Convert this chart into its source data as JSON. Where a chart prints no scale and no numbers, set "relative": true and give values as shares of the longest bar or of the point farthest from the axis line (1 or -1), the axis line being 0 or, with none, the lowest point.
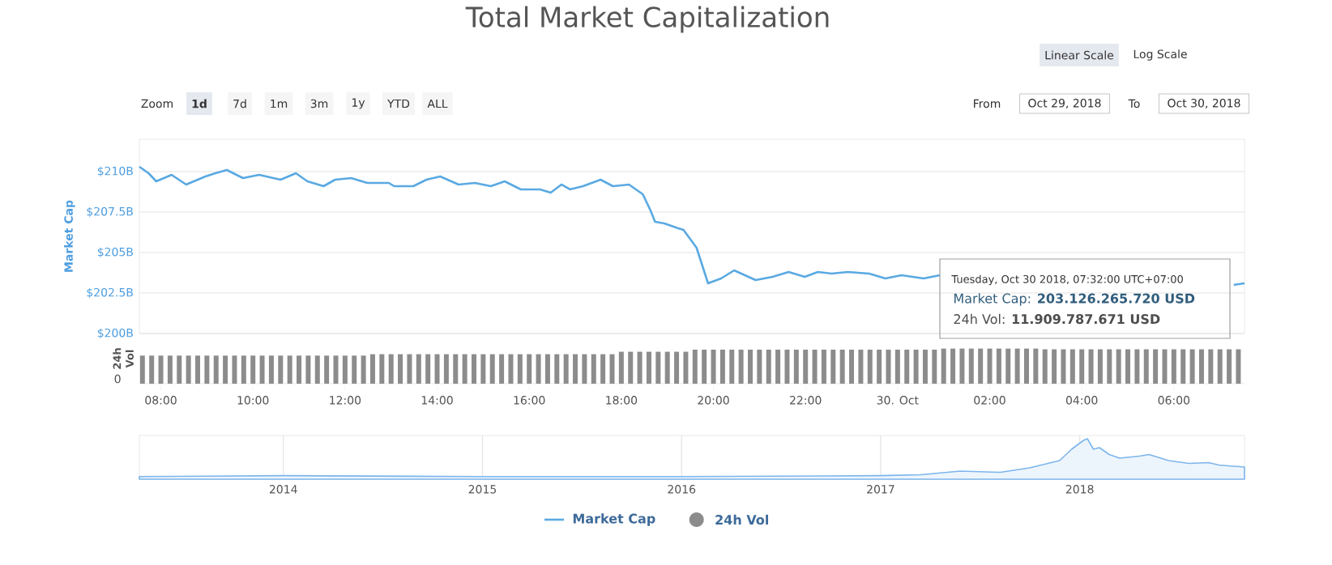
{
  "chart_data": [
    {
      "type": "line",
      "title": "Total Market Capitalization",
      "ylabel": "Market Cap",
      "x": [
        "2018-10-29T07:32",
        "2018-10-29T07:44",
        "2018-10-29T07:54",
        "2018-10-29T08:14",
        "2018-10-29T08:33",
        "2018-10-29T08:58",
        "2018-10-29T09:11",
        "2018-10-29T09:26",
        "2018-10-29T09:47",
        "2018-10-29T10:08",
        "2018-10-29T10:36",
        "2018-10-29T10:56",
        "2018-10-29T11:11",
        "2018-10-29T11:32",
        "2018-10-29T11:47",
        "2018-10-29T12:08",
        "2018-10-29T12:29",
        "2018-10-29T12:57",
        "2018-10-29T13:04",
        "2018-10-29T13:29",
        "2018-10-29T13:46",
        "2018-10-29T14:04",
        "2018-10-29T14:28",
        "2018-10-29T14:49",
        "2018-10-29T15:10",
        "2018-10-29T15:28",
        "2018-10-29T15:49",
        "2018-10-29T16:14",
        "2018-10-29T16:28",
        "2018-10-29T16:42",
        "2018-10-29T16:53",
        "2018-10-29T17:10",
        "2018-10-29T17:33",
        "2018-10-29T17:49",
        "2018-10-29T18:10",
        "2018-10-29T18:28",
        "2018-10-29T18:31",
        "2018-10-29T18:38",
        "2018-10-29T18:44",
        "2018-10-29T18:56",
        "2018-10-29T19:14",
        "2018-10-29T19:21",
        "2018-10-29T19:38",
        "2018-10-29T19:53",
        "2018-10-29T20:10",
        "2018-10-29T20:27",
        "2018-10-29T20:55",
        "2018-10-29T21:17",
        "2018-10-29T21:38",
        "2018-10-29T21:59",
        "2018-10-29T22:16",
        "2018-10-29T22:34",
        "2018-10-29T22:55",
        "2018-10-29T23:23",
        "2018-10-29T23:44",
        "2018-10-30T00:05",
        "2018-10-30T00:34",
        "2018-10-30T00:55",
        "2018-10-30T03:00",
        "2018-10-30T07:18",
        "2018-10-30T07:32"
      ],
      "series": [
        {
          "name": "Market Cap",
          "color": "#5aa9e2",
          "values": [
            210.3,
            209.9,
            209.4,
            209.8,
            209.2,
            209.7,
            209.9,
            210.1,
            209.6,
            209.8,
            209.5,
            209.9,
            209.4,
            209.1,
            209.5,
            209.6,
            209.3,
            209.3,
            209.1,
            209.1,
            209.5,
            209.7,
            209.2,
            209.3,
            209.1,
            209.4,
            208.9,
            208.9,
            208.7,
            209.2,
            208.9,
            209.1,
            209.5,
            209.1,
            209.2,
            208.6,
            208.3,
            207.6,
            206.9,
            206.8,
            206.5,
            206.4,
            205.3,
            203.1,
            203.4,
            203.9,
            203.3,
            203.5,
            203.8,
            203.5,
            203.8,
            203.7,
            203.8,
            203.7,
            203.4,
            203.6,
            203.4,
            203.6,
            null,
            203.0,
            203.1
          ]
        }
      ],
      "xlim": [
        "2018-10-29T07:32",
        "2018-10-30T07:32"
      ],
      "ylim": [
        200,
        212
      ],
      "yticks": [
        {
          "value": 200,
          "label": "$200B"
        },
        {
          "value": 202.5,
          "label": "$202.5B"
        },
        {
          "value": 205,
          "label": "$205B"
        },
        {
          "value": 207.5,
          "label": "$207.5B"
        },
        {
          "value": 210,
          "label": "$210B"
        }
      ],
      "grid": "y",
      "tick_labels": "y",
      "legend": "bottom",
      "annotations": [
        "Linear Scale",
        "Log Scale",
        "Zoom",
        "1d",
        "7d",
        "1m",
        "3m",
        "1y",
        "YTD",
        "ALL",
        "From",
        "Oct 29, 2018",
        "To",
        "Oct 30, 2018",
        "Tuesday, Oct 30 2018, 07:32:00 UTC+07:00",
        "Market Cap: **203.126.265.720 USD**",
        "24h Vol: **11.909.787.671 USD**"
      ]
    },
    {
      "type": "bar",
      "ylabel": "24h Vol",
      "relative": true,
      "x": [
        "2018-10-29T07:36",
        "2018-10-29T07:48",
        "2018-10-29T08:00",
        "2018-10-29T08:12",
        "2018-10-29T08:24",
        "2018-10-29T08:36",
        "2018-10-29T08:48",
        "2018-10-29T09:00",
        "2018-10-29T09:12",
        "2018-10-29T09:24",
        "2018-10-29T09:36",
        "2018-10-29T09:48",
        "2018-10-29T10:00",
        "2018-10-29T10:12",
        "2018-10-29T10:24",
        "2018-10-29T10:36",
        "2018-10-29T10:48",
        "2018-10-29T11:00",
        "2018-10-29T11:12",
        "2018-10-29T11:24",
        "2018-10-29T11:36",
        "2018-10-29T11:48",
        "2018-10-29T12:00",
        "2018-10-29T12:12",
        "2018-10-29T12:24",
        "2018-10-29T12:36",
        "2018-10-29T12:48",
        "2018-10-29T13:00",
        "2018-10-29T13:12",
        "2018-10-29T13:24",
        "2018-10-29T13:36",
        "2018-10-29T13:48",
        "2018-10-29T14:00",
        "2018-10-29T14:12",
        "2018-10-29T14:24",
        "2018-10-29T14:36",
        "2018-10-29T14:48",
        "2018-10-29T15:00",
        "2018-10-29T15:12",
        "2018-10-29T15:24",
        "2018-10-29T15:36",
        "2018-10-29T15:48",
        "2018-10-29T16:00",
        "2018-10-29T16:12",
        "2018-10-29T16:24",
        "2018-10-29T16:36",
        "2018-10-29T16:48",
        "2018-10-29T17:00",
        "2018-10-29T17:12",
        "2018-10-29T17:24",
        "2018-10-29T17:36",
        "2018-10-29T17:48",
        "2018-10-29T18:00",
        "2018-10-29T18:12",
        "2018-10-29T18:24",
        "2018-10-29T18:36",
        "2018-10-29T18:48",
        "2018-10-29T19:00",
        "2018-10-29T19:12",
        "2018-10-29T19:24",
        "2018-10-29T19:36",
        "2018-10-29T19:48",
        "2018-10-29T20:00",
        "2018-10-29T20:12",
        "2018-10-29T20:24",
        "2018-10-29T20:36",
        "2018-10-29T20:48",
        "2018-10-29T21:00",
        "2018-10-29T21:12",
        "2018-10-29T21:24",
        "2018-10-29T21:36",
        "2018-10-29T21:48",
        "2018-10-29T22:00",
        "2018-10-29T22:12",
        "2018-10-29T22:24",
        "2018-10-29T22:36",
        "2018-10-29T22:48",
        "2018-10-29T23:00",
        "2018-10-29T23:12",
        "2018-10-29T23:24",
        "2018-10-29T23:36",
        "2018-10-29T23:48",
        "2018-10-30T00:00",
        "2018-10-30T00:12",
        "2018-10-30T00:24",
        "2018-10-30T00:36",
        "2018-10-30T00:48",
        "2018-10-30T01:00",
        "2018-10-30T01:12",
        "2018-10-30T01:24",
        "2018-10-30T01:36",
        "2018-10-30T01:48",
        "2018-10-30T02:00",
        "2018-10-30T02:12",
        "2018-10-30T02:24",
        "2018-10-30T02:36",
        "2018-10-30T02:48",
        "2018-10-30T03:00",
        "2018-10-30T03:12",
        "2018-10-30T03:24",
        "2018-10-30T03:36",
        "2018-10-30T03:48",
        "2018-10-30T04:00",
        "2018-10-30T04:12",
        "2018-10-30T04:24",
        "2018-10-30T04:36",
        "2018-10-30T04:48",
        "2018-10-30T05:00",
        "2018-10-30T05:12",
        "2018-10-30T05:24",
        "2018-10-30T05:36",
        "2018-10-30T05:48",
        "2018-10-30T06:00",
        "2018-10-30T06:12",
        "2018-10-30T06:24",
        "2018-10-30T06:36",
        "2018-10-30T06:48",
        "2018-10-30T07:00",
        "2018-10-30T07:12",
        "2018-10-30T07:24"
      ],
      "series": [
        {
          "name": "24h Vol",
          "color": "#8c8c8c",
          "values": [
            0.8,
            0.8,
            0.8,
            0.8,
            0.8,
            0.8,
            0.8,
            0.8,
            0.8,
            0.8,
            0.8,
            0.8,
            0.8,
            0.8,
            0.8,
            0.8,
            0.8,
            0.8,
            0.8,
            0.8,
            0.8,
            0.8,
            0.8,
            0.8,
            0.8,
            0.84,
            0.84,
            0.84,
            0.84,
            0.84,
            0.84,
            0.84,
            0.84,
            0.84,
            0.84,
            0.84,
            0.84,
            0.84,
            0.84,
            0.84,
            0.84,
            0.84,
            0.84,
            0.84,
            0.84,
            0.84,
            0.84,
            0.84,
            0.84,
            0.84,
            0.84,
            0.84,
            0.91,
            0.91,
            0.91,
            0.91,
            0.91,
            0.91,
            0.91,
            0.91,
            0.97,
            0.97,
            0.97,
            0.97,
            0.97,
            0.97,
            0.97,
            0.97,
            0.97,
            0.97,
            0.97,
            0.97,
            0.97,
            0.97,
            0.97,
            0.97,
            0.97,
            0.97,
            0.97,
            0.97,
            0.97,
            0.97,
            0.97,
            0.97,
            0.97,
            0.97,
            0.97,
            1,
            1,
            1,
            1,
            1,
            1,
            1,
            1,
            1,
            1,
            1,
            0.98,
            0.98,
            0.98,
            0.98,
            0.98,
            0.98,
            0.98,
            0.98,
            0.98,
            0.98,
            0.98,
            0.98,
            0.98,
            0.98,
            0.98,
            0.98,
            0.98,
            0.98,
            0.98,
            0.98,
            0.98,
            0.98
          ]
        }
      ],
      "xlim": [
        "2018-10-29T07:32",
        "2018-10-30T07:32"
      ],
      "xticks": [
        {
          "value": "2018-10-29T08:00",
          "label": "08:00"
        },
        {
          "value": "2018-10-29T10:00",
          "label": "10:00"
        },
        {
          "value": "2018-10-29T12:00",
          "label": "12:00"
        },
        {
          "value": "2018-10-29T14:00",
          "label": "14:00"
        },
        {
          "value": "2018-10-29T16:00",
          "label": "16:00"
        },
        {
          "value": "2018-10-29T18:00",
          "label": "18:00"
        },
        {
          "value": "2018-10-29T20:00",
          "label": "20:00"
        },
        {
          "value": "2018-10-29T22:00",
          "label": "22:00"
        },
        {
          "value": "2018-10-30T00:00",
          "label": "30. Oct"
        },
        {
          "value": "2018-10-30T02:00",
          "label": "02:00"
        },
        {
          "value": "2018-10-30T04:00",
          "label": "04:00"
        },
        {
          "value": "2018-10-30T06:00",
          "label": "06:00"
        }
      ],
      "annotations": [
        "0"
      ],
      "legend": "bottom"
    },
    {
      "type": "area",
      "relative": true,
      "color": "#7cb5ec",
      "x": [
        "2013-04-12",
        "2014-01-01",
        "2015-01-01",
        "2016-01-01",
        "2017-01-01",
        "2017-03-15",
        "2017-05-27",
        "2017-08-08",
        "2017-10-01",
        "2017-11-25",
        "2017-12-17",
        "2018-01-08",
        "2018-01-15",
        "2018-01-26",
        "2018-02-06",
        "2018-02-24",
        "2018-03-15",
        "2018-04-20",
        "2018-05-08",
        "2018-06-13",
        "2018-07-20",
        "2018-08-25",
        "2018-09-13",
        "2018-10-30"
      ],
      "values": [
        0.065,
        0.087,
        0.065,
        0.065,
        0.087,
        0.11,
        0.2,
        0.17,
        0.28,
        0.46,
        0.74,
        0.96,
        1,
        0.74,
        0.78,
        0.61,
        0.52,
        0.57,
        0.61,
        0.46,
        0.39,
        0.41,
        0.35,
        0.3
      ],
      "xlim": [
        "2013-04-12",
        "2018-10-30"
      ],
      "xticks": [
        {
          "value": "2014-01-01",
          "label": "2014"
        },
        {
          "value": "2015-01-01",
          "label": "2015"
        },
        {
          "value": "2016-01-01",
          "label": "2016"
        },
        {
          "value": "2017-01-01",
          "label": "2017"
        },
        {
          "value": "2018-01-01",
          "label": "2018"
        }
      ],
      "grid": "x"
    }
  ]
}
